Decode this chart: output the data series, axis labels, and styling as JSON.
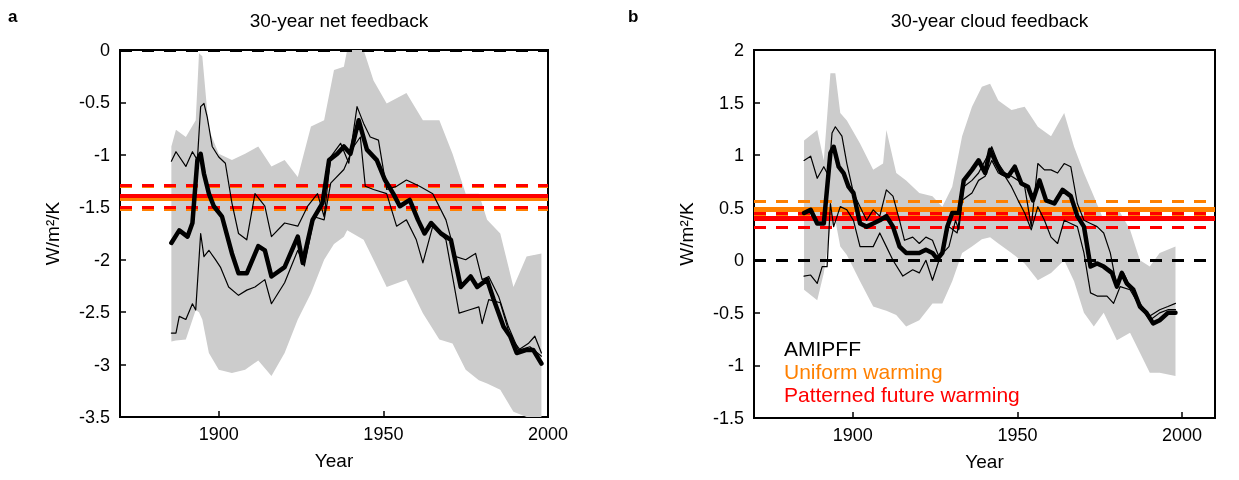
{
  "chart_data": [
    {
      "type": "line",
      "title": "30-year net feedback",
      "xlabel": "Year",
      "ylabel": "W/m²/K",
      "annotations": [
        "a"
      ],
      "xlim": [
        1870,
        2000
      ],
      "xticks": [
        1900,
        1950,
        2000
      ],
      "ylim": [
        -3.5,
        0
      ],
      "yticks": [
        -3.5,
        -3,
        -2.5,
        -2,
        -1.5,
        -1,
        -0.5,
        0
      ],
      "series": [
        {
          "type": "area",
          "color": "#cccccc",
          "values": [
            null,
            null,
            null,
            null,
            null,
            null,
            null,
            null,
            null,
            null,
            null,
            null,
            null,
            null,
            null,
            null,
            null,
            null,
            null,
            null,
            null,
            null,
            null,
            null,
            null,
            null,
            null,
            null,
            null,
            null,
            null,
            null,
            null
          ],
          "x": [
            1885.6,
            1887,
            1890,
            1893,
            1894,
            1895,
            1897,
            1900,
            1904,
            1908,
            1912,
            1916,
            1920,
            1924,
            1928,
            1932,
            1935,
            1938,
            1939,
            1944,
            1947,
            1951,
            1957,
            1962,
            1967,
            1971,
            1975,
            1979,
            1981.5,
            1985.5,
            1989.5,
            1993.5,
            1998
          ],
          "upper": [
            -0.92,
            -0.76,
            -0.83,
            -0.67,
            -0.03,
            -0.06,
            -0.76,
            -0.99,
            -1.05,
            -0.99,
            -0.92,
            -1.11,
            -1.05,
            -1.21,
            -0.73,
            -0.67,
            -0.19,
            -0.16,
            0,
            0,
            -0.29,
            -0.51,
            -0.41,
            -0.67,
            -0.67,
            -0.99,
            -1.37,
            -1.37,
            -1.62,
            -1.75,
            -2.26,
            -1.97,
            -1.94
          ],
          "lower": [
            -2.78,
            -2.77,
            -2.76,
            -2.48,
            -2.5,
            -2.57,
            -2.89,
            -3.05,
            -3.08,
            -3.05,
            -2.96,
            -3.11,
            -2.89,
            -2.57,
            -2.32,
            -2,
            -1.85,
            -1.78,
            -1.72,
            -1.81,
            -2,
            -2.26,
            -2.19,
            -2.51,
            -2.76,
            -2.8,
            -3.05,
            -3.15,
            -3.18,
            -3.24,
            -3.45,
            -3.5,
            -3.5
          ]
        },
        {
          "color": "#000000",
          "x": [
            1885.6,
            1888,
            1890.5,
            1892,
            1893.5,
            1894.5,
            1895.5,
            1897,
            1898.5,
            1901,
            1904,
            1906,
            1908.5,
            1912,
            1914,
            1916,
            1920,
            1924,
            1925.5,
            1928.5,
            1931.5,
            1933.5,
            1936,
            1938,
            1940,
            1942.5,
            1945,
            1948,
            1950.5,
            1953,
            1955,
            1958,
            1960.5,
            1962.5,
            1964.5,
            1967.5,
            1970.5,
            1973.5,
            1976.5,
            1978.5,
            1981.5,
            1983.5,
            1986.5,
            1988.5,
            1990.5,
            1993.5,
            1995.5,
            1998
          ],
          "values": [
            -1.84,
            -1.72,
            -1.78,
            -1.65,
            -1.05,
            -0.99,
            -1.18,
            -1.37,
            -1.49,
            -1.59,
            -1.94,
            -2.13,
            -2.13,
            -1.87,
            -1.91,
            -2.16,
            -2.07,
            -1.78,
            -2.03,
            -1.62,
            -1.46,
            -1.05,
            -0.99,
            -0.92,
            -0.99,
            -0.67,
            -0.95,
            -1.05,
            -1.24,
            -1.37,
            -1.49,
            -1.43,
            -1.62,
            -1.75,
            -1.65,
            -1.75,
            -1.81,
            -2.26,
            -2.16,
            -2.26,
            -2.19,
            -2.38,
            -2.64,
            -2.73,
            -2.89,
            -2.86,
            -2.86,
            -2.99
          ]
        },
        {
          "color": "#000000",
          "x": [
            1885.6,
            1887,
            1890,
            1892,
            1893.5,
            1894.5,
            1895.5,
            1896.5,
            1898,
            1900,
            1902,
            1904,
            1906,
            1908.5,
            1911,
            1914,
            1916,
            1920,
            1924,
            1927,
            1930,
            1932,
            1934,
            1937,
            1939.5,
            1942,
            1944,
            1946,
            1948.5,
            1951,
            1954,
            1957,
            1961,
            1965,
            1969,
            1972,
            1975,
            1978,
            1980,
            1982,
            1985,
            1988,
            1991,
            1994,
            1996,
            1998
          ],
          "values": [
            -1.06,
            -0.97,
            -1.11,
            -0.97,
            -1.05,
            -0.54,
            -0.51,
            -0.64,
            -0.92,
            -1.02,
            -1.08,
            -1.46,
            -1.75,
            -1.81,
            -1.37,
            -1.49,
            -1.78,
            -1.65,
            -1.68,
            -1.49,
            -1.37,
            -1.59,
            -1.02,
            -0.89,
            -1.08,
            -0.54,
            -0.7,
            -0.83,
            -0.86,
            -1.33,
            -1.3,
            -1.24,
            -1.3,
            -1.37,
            -1.62,
            -1.97,
            -2,
            -1.94,
            -2.19,
            -2.16,
            -2.35,
            -2.64,
            -2.86,
            -2.8,
            -2.73,
            -2.89
          ]
        },
        {
          "color": "#000000",
          "x": [
            1885.6,
            1887,
            1888,
            1890,
            1892,
            1893,
            1894.5,
            1895.5,
            1897,
            1899,
            1900.5,
            1903,
            1906,
            1908.5,
            1911,
            1914,
            1916,
            1920,
            1924,
            1926,
            1929,
            1932,
            1934,
            1938,
            1941,
            1943,
            1944.5,
            1947,
            1951,
            1954,
            1957,
            1960,
            1962,
            1965,
            1969,
            1973,
            1976,
            1979,
            1980,
            1982,
            1985.5,
            1988.5,
            1991.5,
            1994.5,
            1998
          ],
          "values": [
            -2.7,
            -2.7,
            -2.54,
            -2.57,
            -2.42,
            -2.48,
            -1.75,
            -1.97,
            -1.91,
            -2,
            -2.07,
            -2.26,
            -2.34,
            -2.29,
            -2.26,
            -2.19,
            -2.42,
            -2.22,
            -1.91,
            -2.06,
            -1.59,
            -1.62,
            -1.27,
            -1.14,
            -0.92,
            -0.83,
            -1.3,
            -1.33,
            -1.37,
            -1.68,
            -1.62,
            -1.81,
            -2.03,
            -1.68,
            -1.81,
            -2.51,
            -2.48,
            -2.45,
            -2.61,
            -2.38,
            -2.41,
            -2.73,
            -2.86,
            -2.83,
            -2.92
          ]
        }
      ],
      "ref_lines": [
        {
          "axis": "y",
          "value": 0,
          "color": "#000000",
          "line_style": "dashed"
        },
        {
          "axis": "y",
          "value": -1.3,
          "color": "#ff8000",
          "line_style": "dashed"
        },
        {
          "axis": "y",
          "value": -1.52,
          "color": "#ff8000",
          "line_style": "dashed"
        },
        {
          "axis": "y",
          "value": -1.42,
          "color": "#ff8000"
        },
        {
          "axis": "y",
          "value": -1.29,
          "color": "#ff0000",
          "line_style": "dashed"
        },
        {
          "axis": "y",
          "value": -1.5,
          "color": "#ff0000",
          "line_style": "dashed"
        },
        {
          "axis": "y",
          "value": -1.39,
          "color": "#ff0000"
        }
      ]
    },
    {
      "type": "line",
      "title": "30-year cloud feedback",
      "xlabel": "Year",
      "ylabel": "W/m²/K",
      "annotations": [
        "b"
      ],
      "xlim": [
        1870,
        2010
      ],
      "xticks": [
        1900,
        1950,
        2000
      ],
      "ylim": [
        -1.5,
        2
      ],
      "yticks": [
        -1.5,
        -1,
        -0.5,
        0,
        0.5,
        1,
        1.5,
        2
      ],
      "legend": "bottom left",
      "series": [
        {
          "type": "area",
          "color": "#cccccc",
          "values": [
            null,
            null,
            null,
            null,
            null,
            null,
            null,
            null,
            null,
            null,
            null,
            null,
            null,
            null,
            null,
            null,
            null,
            null,
            null,
            null,
            null,
            null,
            null,
            null,
            null,
            null,
            null,
            null,
            null,
            null,
            null,
            null,
            null,
            null,
            null,
            null,
            null
          ],
          "x": [
            1885.2,
            1889.2,
            1891.2,
            1893.2,
            1894.7,
            1896.2,
            1898.2,
            1902.2,
            1906.2,
            1909.2,
            1910.2,
            1913.2,
            1916.2,
            1920.2,
            1924.2,
            1927.2,
            1930.2,
            1933.2,
            1936.2,
            1939.2,
            1941.7,
            1944.2,
            1948.2,
            1952.2,
            1956.2,
            1960.2,
            1964.2,
            1967.2,
            1970.2,
            1973.2,
            1976.2,
            1980.2,
            1984.2,
            1987.2,
            1990.2,
            1993.2,
            1998
          ],
          "upper": [
            1.14,
            1.24,
            0.95,
            1.78,
            1.78,
            1.4,
            1.33,
            1.11,
            0.86,
            0.92,
            1.24,
            0.83,
            0.76,
            0.64,
            0.61,
            0.51,
            0.7,
            1.18,
            1.46,
            1.65,
            1.68,
            1.52,
            1.43,
            1.46,
            1.27,
            1.18,
            1.4,
            1.08,
            0.83,
            0.61,
            0.38,
            0.51,
            0.29,
            0,
            -0.06,
            0.07,
            0.13
          ],
          "lower": [
            -0.28,
            -0.38,
            -0.12,
            0.3,
            0.38,
            0.13,
            0.05,
            -0.2,
            -0.44,
            -0.47,
            -0.48,
            -0.52,
            -0.63,
            -0.57,
            -0.41,
            -0.41,
            -0.2,
            0.07,
            0.13,
            0.2,
            0.22,
            0.16,
            0.07,
            -0.03,
            -0.19,
            -0.12,
            0,
            -0.2,
            -0.5,
            -0.63,
            -0.5,
            -0.76,
            -0.69,
            -0.88,
            -1.07,
            -1.07,
            -1.1
          ]
        },
        {
          "name": "AMIPFF",
          "color": "#000000",
          "x": [
            1885.2,
            1887.2,
            1889.2,
            1891.2,
            1893.2,
            1894.2,
            1895.7,
            1897.2,
            1898.7,
            1900.2,
            1902.2,
            1904.2,
            1906.2,
            1908.2,
            1910.2,
            1912.2,
            1914.2,
            1916.2,
            1918.2,
            1920.2,
            1922.2,
            1924.2,
            1925.7,
            1927.2,
            1928.7,
            1930.2,
            1932.2,
            1933.7,
            1936.2,
            1938.2,
            1940.2,
            1941.7,
            1943.2,
            1945.2,
            1947.2,
            1949.2,
            1951.2,
            1953.2,
            1954.7,
            1956.7,
            1958.7,
            1961.2,
            1963.7,
            1966.2,
            1968.2,
            1970.2,
            1972.2,
            1974.2,
            1976.2,
            1978.7,
            1980.2,
            1981.7,
            1983.2,
            1985.2,
            1987.2,
            1989.2,
            1991.2,
            1993.2,
            1995.7,
            1998
          ],
          "values": [
            0.45,
            0.48,
            0.35,
            0.35,
            1.02,
            1.08,
            0.89,
            0.83,
            0.7,
            0.64,
            0.35,
            0.32,
            0.35,
            0.38,
            0.42,
            0.32,
            0.13,
            0.07,
            0.07,
            0.07,
            0.1,
            0.07,
            0.01,
            0.07,
            0.32,
            0.45,
            0.45,
            0.76,
            0.86,
            0.95,
            0.83,
            1.05,
            0.95,
            0.83,
            0.8,
            0.89,
            0.73,
            0.7,
            0.57,
            0.76,
            0.57,
            0.54,
            0.67,
            0.61,
            0.42,
            0.32,
            -0.06,
            -0.03,
            -0.06,
            -0.12,
            -0.25,
            -0.12,
            -0.22,
            -0.28,
            -0.44,
            -0.5,
            -0.6,
            -0.57,
            -0.5,
            -0.5
          ]
        },
        {
          "color": "#000000",
          "x": [
            1885.2,
            1887.2,
            1889.2,
            1891.2,
            1892.7,
            1893.7,
            1894.7,
            1896.7,
            1898.2,
            1900.2,
            1902.2,
            1904.2,
            1906.2,
            1908.2,
            1910.2,
            1912.2,
            1914.2,
            1915.7,
            1918.2,
            1920.2,
            1922.2,
            1924.2,
            1926.2,
            1929.2,
            1931.2,
            1932.2,
            1933.7,
            1936.2,
            1938.2,
            1940.2,
            1942.2,
            1944.2,
            1946.2,
            1948.2,
            1950.2,
            1952.2,
            1954.2,
            1956.2,
            1958.2,
            1960.2,
            1962.2,
            1964.2,
            1966.2,
            1968.2,
            1970.2,
            1972.2,
            1974.2,
            1976.2,
            1978.2,
            1980.2,
            1982.2,
            1984.2,
            1987.2,
            1990.2,
            1993.2,
            1995.7,
            1998
          ],
          "values": [
            0.95,
            0.99,
            0.78,
            0.89,
            0.8,
            1.21,
            1.27,
            1.18,
            0.92,
            0.64,
            0.51,
            0.38,
            0.48,
            0.42,
            0.67,
            0.61,
            0.38,
            0.19,
            0.22,
            0.16,
            0.22,
            0.19,
            0.03,
            0.13,
            0.38,
            0.29,
            0.7,
            0.76,
            0.83,
            0.95,
            1.08,
            0.92,
            0.83,
            0.8,
            0.76,
            0.7,
            0.32,
            0.92,
            0.86,
            0.86,
            0.83,
            0.92,
            0.89,
            0.54,
            0.38,
            0.35,
            0.32,
            0.26,
            0.07,
            -0.25,
            -0.12,
            -0.25,
            -0.41,
            -0.53,
            -0.47,
            -0.44,
            -0.41
          ]
        },
        {
          "color": "#000000",
          "x": [
            1885.2,
            1887.2,
            1889.2,
            1890.7,
            1892.2,
            1893.2,
            1894.2,
            1896.2,
            1898.2,
            1900.2,
            1902.2,
            1904.2,
            1906.2,
            1908.2,
            1910.2,
            1912.2,
            1915.2,
            1918.2,
            1920.2,
            1922.2,
            1924.2,
            1926.2,
            1929.2,
            1931.7,
            1933.2,
            1936.2,
            1938.2,
            1940.2,
            1942.2,
            1944.2,
            1946.2,
            1948.2,
            1950.2,
            1952.2,
            1954.2,
            1956.2,
            1958.2,
            1960.2,
            1962.2,
            1964.2,
            1966.2,
            1968.2,
            1970.2,
            1972.2,
            1974.2,
            1977.2,
            1979.2,
            1981.2,
            1984.2,
            1987.2,
            1990.2,
            1993.2,
            1995.7,
            1998
          ],
          "values": [
            -0.15,
            -0.14,
            -0.22,
            -0.06,
            -0.06,
            0.54,
            0.32,
            0.51,
            0.48,
            0.38,
            0.13,
            0.13,
            0.13,
            0.26,
            0.13,
            0,
            -0.15,
            -0.09,
            -0.12,
            0,
            -0.19,
            0,
            0.32,
            0.26,
            0.57,
            0.64,
            0.76,
            0.8,
            0.95,
            0.83,
            0.8,
            0.7,
            0.57,
            0.45,
            0.29,
            0.51,
            0.38,
            0.22,
            0.16,
            0.38,
            0.35,
            0.32,
            0.07,
            -0.31,
            -0.34,
            -0.34,
            -0.41,
            -0.25,
            -0.28,
            -0.44,
            -0.57,
            -0.5,
            -0.47,
            -0.47
          ]
        }
      ],
      "ref_lines": [
        {
          "axis": "y",
          "value": 0,
          "color": "#000000",
          "line_style": "dashed"
        },
        {
          "axis": "y",
          "value": 0.56,
          "color": "#ff8000",
          "line_style": "dashed"
        },
        {
          "axis": "y",
          "value": 0.43,
          "color": "#ff8000",
          "line_style": "dashed"
        },
        {
          "axis": "y",
          "value": 0.49,
          "color": "#ff8000",
          "label": "Uniform warming"
        },
        {
          "axis": "y",
          "value": 0.45,
          "color": "#ff0000",
          "line_style": "dashed"
        },
        {
          "axis": "y",
          "value": 0.31,
          "color": "#ff0000",
          "line_style": "dashed"
        },
        {
          "axis": "y",
          "value": 0.4,
          "color": "#ff0000",
          "label": "Patterned future warming"
        }
      ]
    }
  ]
}
